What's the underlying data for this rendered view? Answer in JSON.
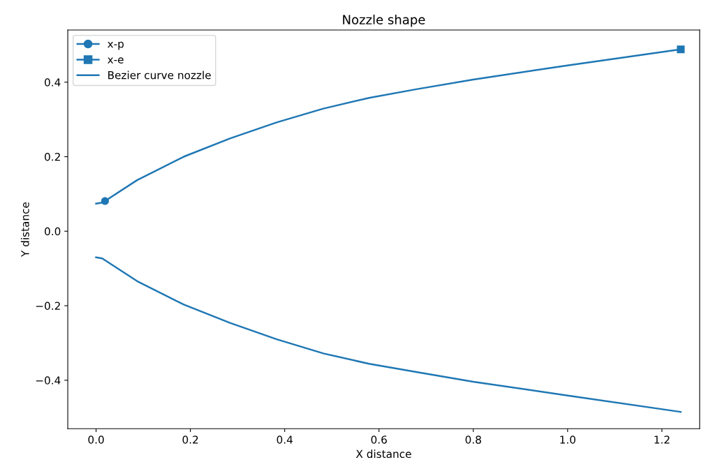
{
  "chart_data": {
    "type": "line",
    "title": "Nozzle shape",
    "xlabel": "X distance",
    "ylabel": "Y distance",
    "xlim": [
      -0.06,
      1.28
    ],
    "xticks": [
      {
        "value": 0,
        "label": "0.0"
      },
      0.2,
      0.4,
      0.6,
      0.8,
      {
        "value": 1,
        "label": "1.0"
      },
      1.2
    ],
    "ylim": [
      -0.53,
      0.54
    ],
    "yticks": [
      {
        "value": -0.4,
        "label": "−0.4"
      },
      {
        "value": -0.2,
        "label": "−0.2"
      },
      {
        "value": 0,
        "label": "0.0"
      },
      0.2,
      0.4
    ],
    "grid": false,
    "legend": "top left",
    "series": [
      {
        "name": "x-p",
        "color": "#1f77b4",
        "marker": "circle",
        "x": [
          0.019
        ],
        "values": [
          0.081
        ]
      },
      {
        "name": "x-e",
        "color": "#1f77b4",
        "marker": "square",
        "x": [
          1.24
        ],
        "values": [
          0.488
        ]
      },
      {
        "name": "Bezier curve nozzle",
        "color": "#1f77b4",
        "marker": "none",
        "x": [
          0,
          0.013,
          0.019,
          0.087,
          0.186,
          0.284,
          0.383,
          0.482,
          0.579,
          0.679,
          0.8,
          1.0,
          1.24
        ],
        "values": [
          0.074,
          0.077,
          0.081,
          0.137,
          0.2,
          0.249,
          0.292,
          0.329,
          0.358,
          0.381,
          0.407,
          0.445,
          0.488
        ]
      },
      {
        "color": "#1f77b4",
        "marker": "none",
        "x": [
          0,
          0.013,
          0.087,
          0.186,
          0.284,
          0.383,
          0.482,
          0.579,
          0.679,
          0.8,
          1.0,
          1.24
        ],
        "values": [
          -0.07,
          -0.073,
          -0.134,
          -0.197,
          -0.246,
          -0.29,
          -0.328,
          -0.356,
          -0.378,
          -0.404,
          -0.441,
          -0.485
        ]
      }
    ]
  }
}
